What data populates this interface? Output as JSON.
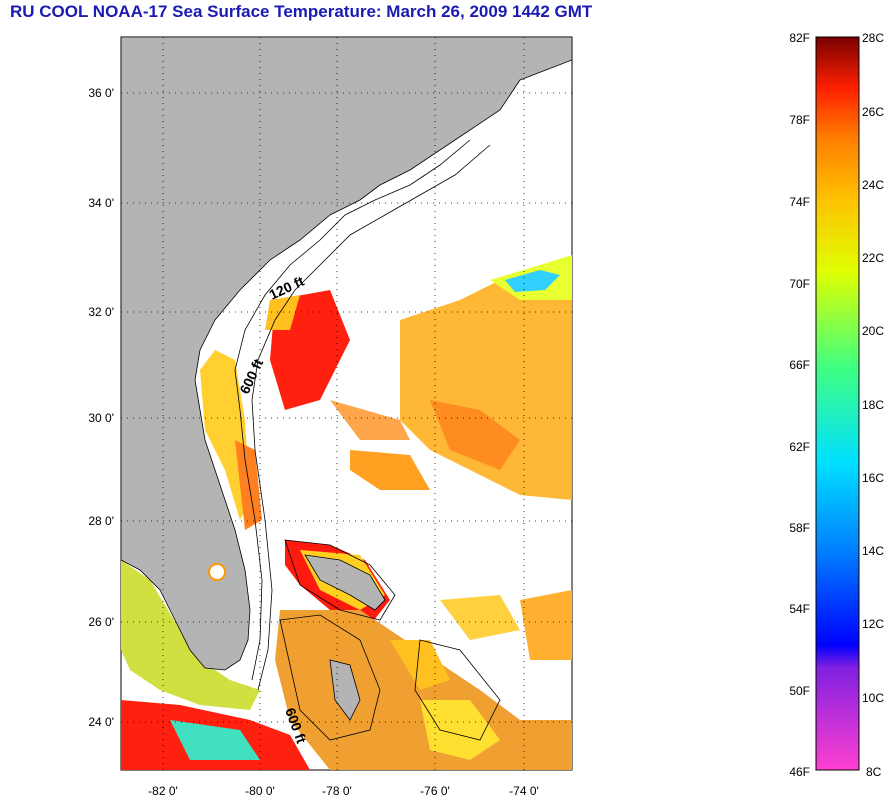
{
  "title": "RU COOL  NOAA-17  Sea Surface Temperature:  March 26, 2009 1442 GMT",
  "map": {
    "lat_ticks": [
      {
        "value": 36,
        "label": "36 0'"
      },
      {
        "value": 34,
        "label": "34 0'"
      },
      {
        "value": 32,
        "label": "32 0'"
      },
      {
        "value": 30,
        "label": "30 0'"
      },
      {
        "value": 28,
        "label": "28 0'"
      },
      {
        "value": 26,
        "label": "26 0'"
      },
      {
        "value": 24,
        "label": "24 0'"
      }
    ],
    "lon_ticks": [
      {
        "value": -82,
        "label": "-82 0'"
      },
      {
        "value": -80,
        "label": "-80 0'"
      },
      {
        "value": -78,
        "label": "-78 0'"
      },
      {
        "value": -76,
        "label": "-76 0'"
      },
      {
        "value": -74,
        "label": "-74 0'"
      }
    ],
    "contour_labels": [
      "120 ft",
      "600 ft",
      "600 ft"
    ],
    "land_color": "#b4b4b4"
  },
  "colorbar": {
    "f_labels": [
      "82F",
      "78F",
      "74F",
      "70F",
      "66F",
      "62F",
      "58F",
      "54F",
      "50F",
      "46F"
    ],
    "c_labels": [
      "28C",
      "26C",
      "24C",
      "22C",
      "20C",
      "18C",
      "16C",
      "14C",
      "12C",
      "10C",
      "8C"
    ],
    "stops": [
      "#ff40d0",
      "#8020e0",
      "#0000ff",
      "#0080ff",
      "#00e0ff",
      "#40ff80",
      "#e0ff00",
      "#ffc000",
      "#ff8000",
      "#ff2000",
      "#7a0000"
    ]
  }
}
